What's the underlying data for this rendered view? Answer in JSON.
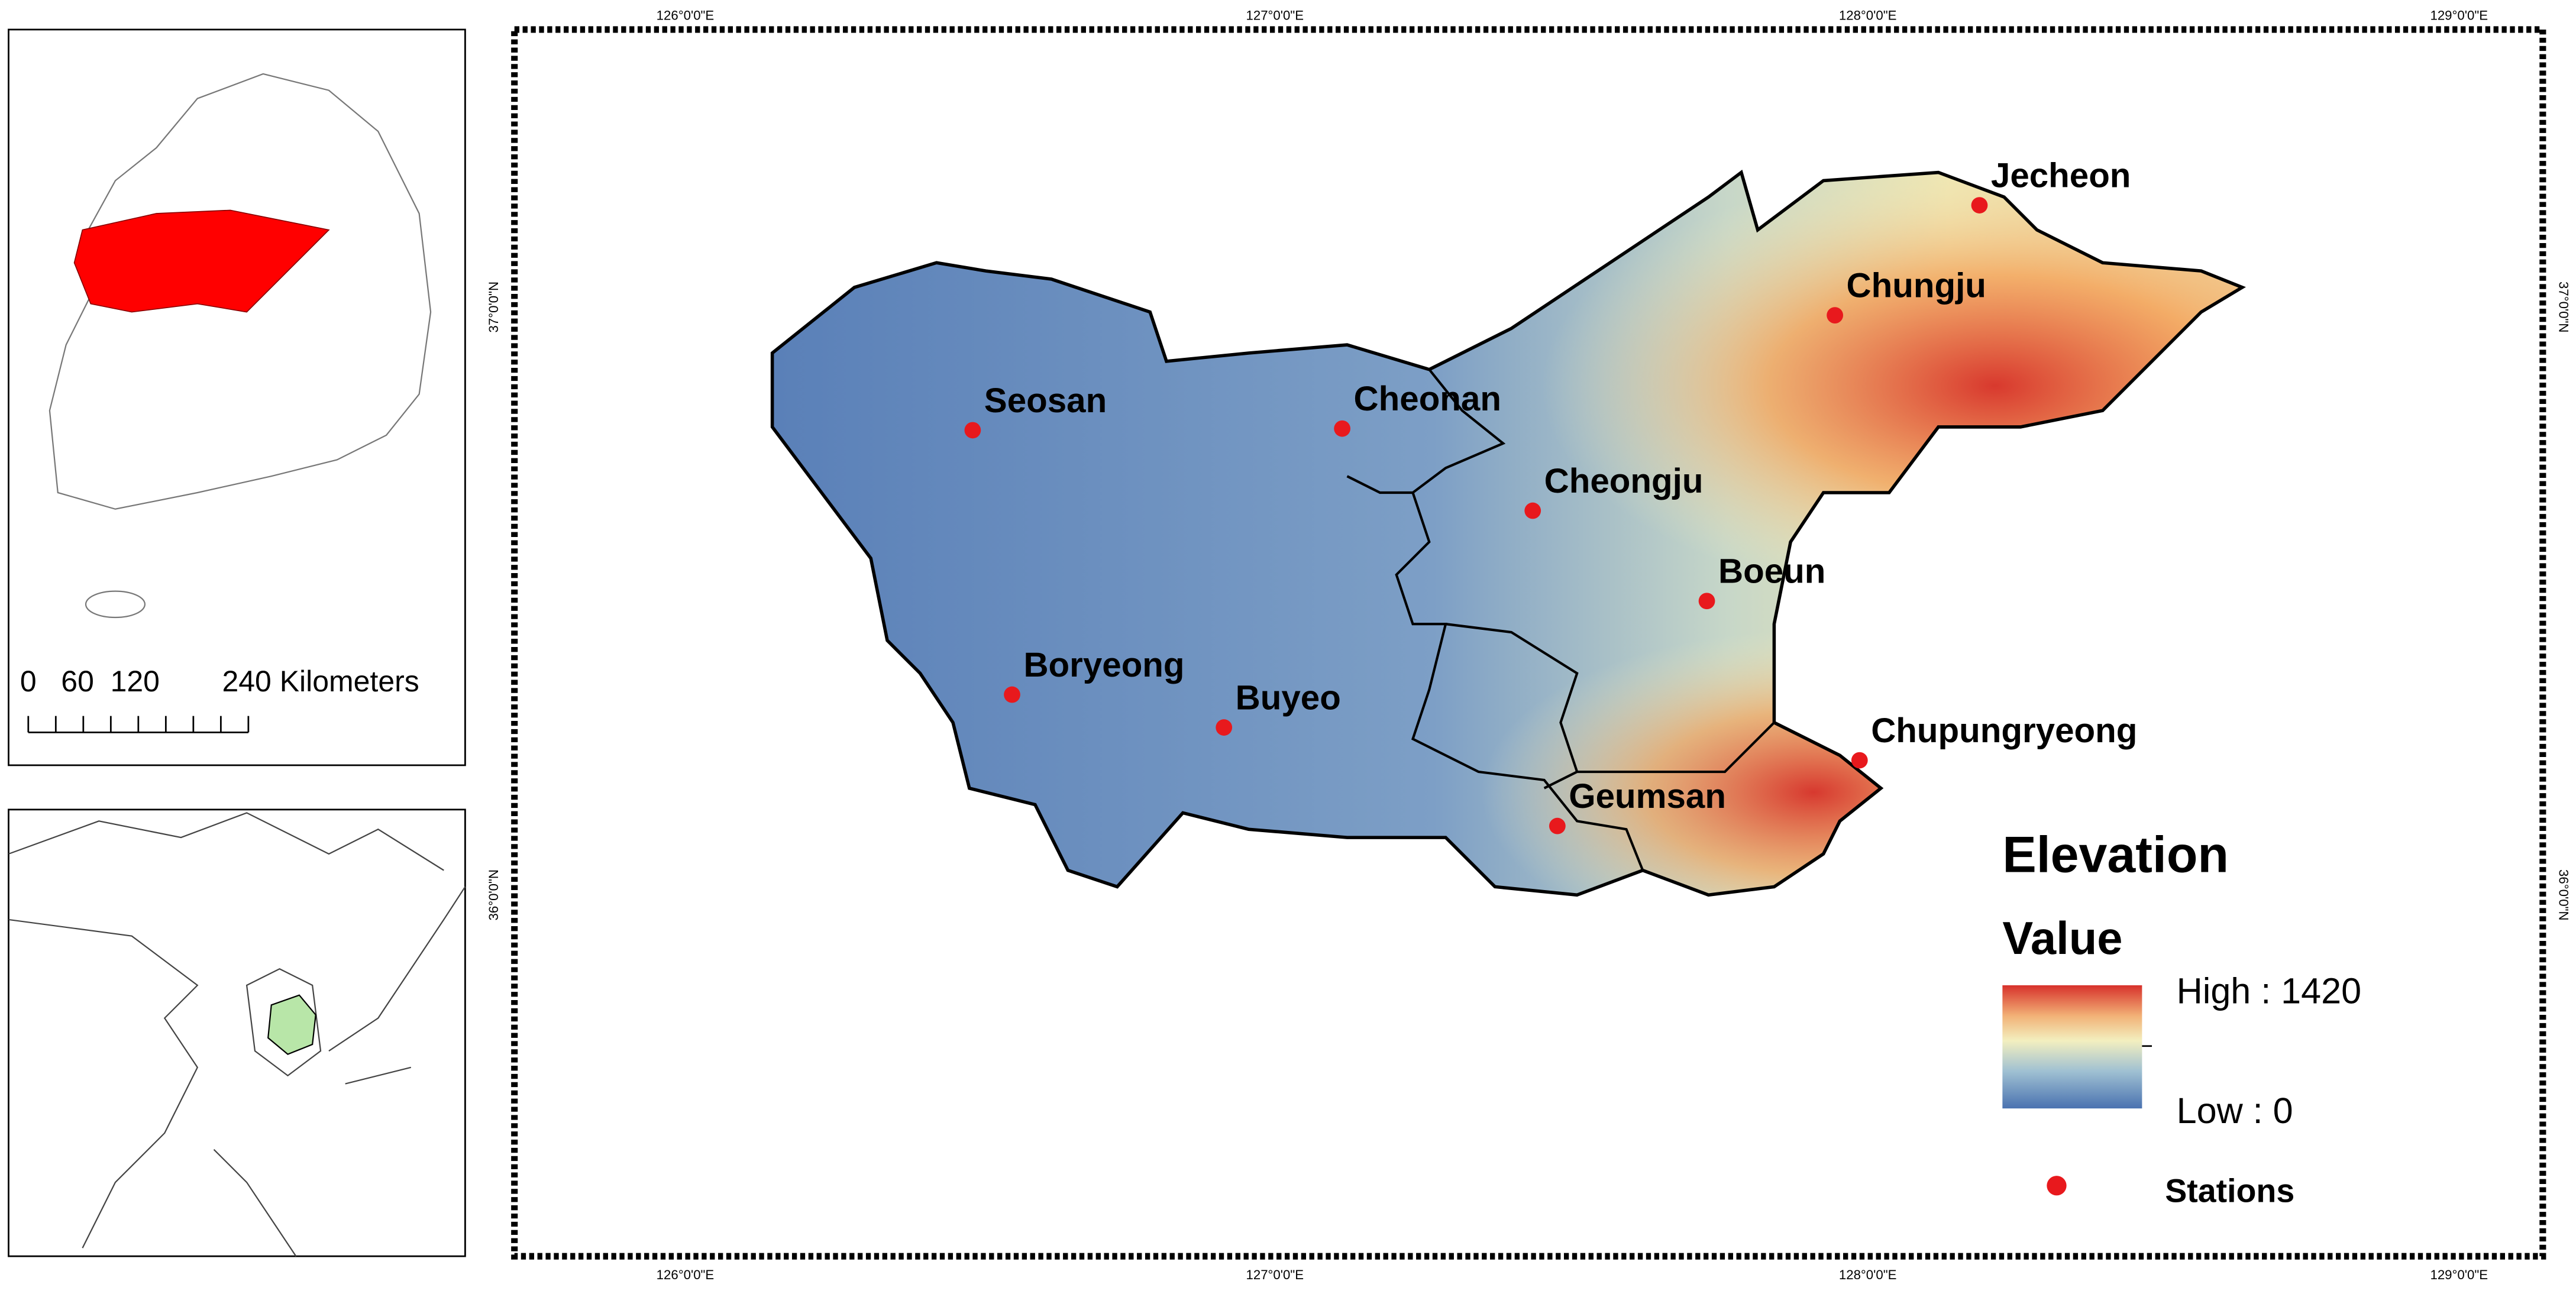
{
  "map": {
    "graticule": {
      "top": [
        "126°0'0\"E",
        "127°0'0\"E",
        "128°0'0\"E",
        "129°0'0\"E"
      ],
      "bottom": [
        "126°0'0\"E",
        "127°0'0\"E",
        "128°0'0\"E",
        "129°0'0\"E"
      ],
      "left": [
        "37°0'0\"N",
        "36°0'0\"N"
      ],
      "right": [
        "37°0'0\"N",
        "36°0'0\"N"
      ]
    },
    "stations": [
      "Jecheon",
      "Chungju",
      "Seosan",
      "Cheonan",
      "Cheongju",
      "Boeun",
      "Boryeong",
      "Buyeo",
      "Chupungryeong",
      "Geumsan"
    ],
    "legend": {
      "title": "Elevation",
      "subtitle": "Value",
      "high": "High : 1420",
      "low": "Low : 0",
      "stations": "Stations"
    },
    "scale_bar": {
      "labels": [
        "0",
        "60",
        "120",
        "240 Kilometers"
      ]
    }
  }
}
